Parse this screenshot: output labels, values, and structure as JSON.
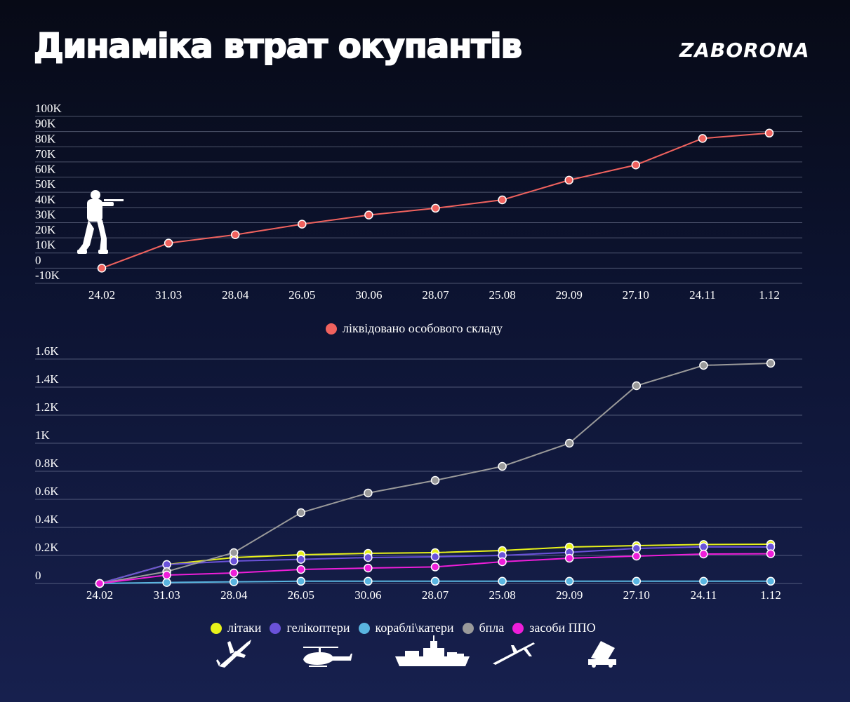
{
  "header": {
    "title": "Динаміка втрат окупантів",
    "logo": "ZABORONA"
  },
  "icons": [
    "soldier-icon",
    "plane-icon",
    "helicopter-icon",
    "ship-icon",
    "drone-icon",
    "air-defense-icon"
  ],
  "chart_data": [
    {
      "type": "line",
      "categories": [
        "24.02",
        "31.03",
        "28.04",
        "26.05",
        "30.06",
        "28.07",
        "25.08",
        "29.09",
        "27.10",
        "24.11",
        "1.12"
      ],
      "ytick_labels": [
        "100K",
        "90K",
        "80K",
        "70K",
        "60K",
        "50K",
        "40K",
        "30K",
        "20K",
        "10K",
        "0",
        "-10K"
      ],
      "yticks": [
        100000,
        90000,
        80000,
        70000,
        60000,
        50000,
        40000,
        30000,
        20000,
        10000,
        0,
        -10000
      ],
      "ylim": [
        -10000,
        100000
      ],
      "series": [
        {
          "name": "ліквідовано особового складу",
          "color": "#f0625e",
          "values": [
            0,
            16500,
            22000,
            29000,
            35000,
            39500,
            45000,
            58000,
            68000,
            85500,
            89000
          ]
        }
      ],
      "legend_position": "bottom-center",
      "grid": true
    },
    {
      "type": "line",
      "categories": [
        "24.02",
        "31.03",
        "28.04",
        "26.05",
        "30.06",
        "28.07",
        "25.08",
        "29.09",
        "27.10",
        "24.11",
        "1.12"
      ],
      "ytick_labels": [
        "1.6K",
        "1.4K",
        "1.2K",
        "1K",
        "0.8K",
        "0.6K",
        "0.4K",
        "0.2K",
        "0"
      ],
      "yticks": [
        1600,
        1400,
        1200,
        1000,
        800,
        600,
        400,
        200,
        0
      ],
      "ylim": [
        0,
        1600
      ],
      "series": [
        {
          "name": "літаки",
          "color": "#e8f21a",
          "values": [
            0,
            135,
            185,
            205,
            215,
            220,
            235,
            260,
            270,
            278,
            280
          ]
        },
        {
          "name": "гелікоптери",
          "color": "#6a52d9",
          "values": [
            0,
            135,
            160,
            172,
            185,
            190,
            200,
            222,
            250,
            261,
            260
          ]
        },
        {
          "name": "кораблі\\катери",
          "color": "#5ab5e0",
          "values": [
            0,
            7,
            12,
            16,
            16,
            16,
            16,
            16,
            16,
            16,
            16
          ]
        },
        {
          "name": "бпла",
          "color": "#9a9a9a",
          "values": [
            0,
            85,
            220,
            505,
            645,
            735,
            835,
            1000,
            1410,
            1555,
            1570
          ]
        },
        {
          "name": "засоби ППО",
          "color": "#ee1ed9",
          "values": [
            0,
            60,
            75,
            100,
            110,
            118,
            155,
            180,
            195,
            210,
            212
          ]
        }
      ],
      "legend_position": "bottom-center",
      "grid": true
    }
  ]
}
